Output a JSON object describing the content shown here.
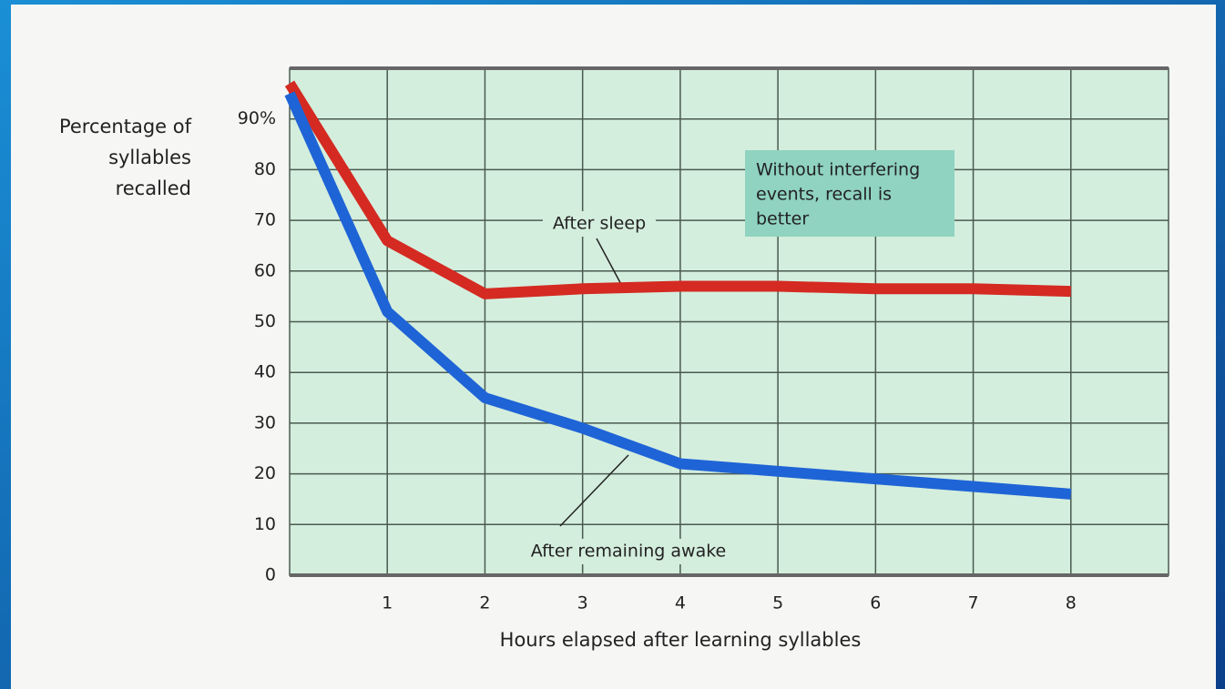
{
  "chart_data": {
    "type": "line",
    "y_label_lines": [
      "Percentage of",
      "syllables",
      "recalled"
    ],
    "x_label": "Hours elapsed after learning syllables",
    "annotation_lines": [
      "Without interfering",
      "events, recall is",
      "better"
    ],
    "x": [
      0,
      1,
      2,
      3,
      4,
      5,
      6,
      7,
      8
    ],
    "series": [
      {
        "name": "After sleep",
        "color": "#d42a22",
        "values": [
          97,
          66,
          55.5,
          56.5,
          57,
          57,
          56.5,
          56.5,
          56
        ]
      },
      {
        "name": "After remaining awake",
        "color": "#1f64d6",
        "values": [
          95,
          52,
          35,
          29,
          22,
          20.5,
          19,
          17.5,
          16
        ]
      }
    ],
    "xlim": [
      0,
      9
    ],
    "xticks": [
      1,
      2,
      3,
      4,
      5,
      6,
      7,
      8
    ],
    "ylim": [
      0,
      100
    ],
    "yticks": [
      0,
      10,
      20,
      30,
      40,
      50,
      60,
      70,
      80,
      {
        "value": 90,
        "label": "90%"
      }
    ],
    "grid": true
  }
}
